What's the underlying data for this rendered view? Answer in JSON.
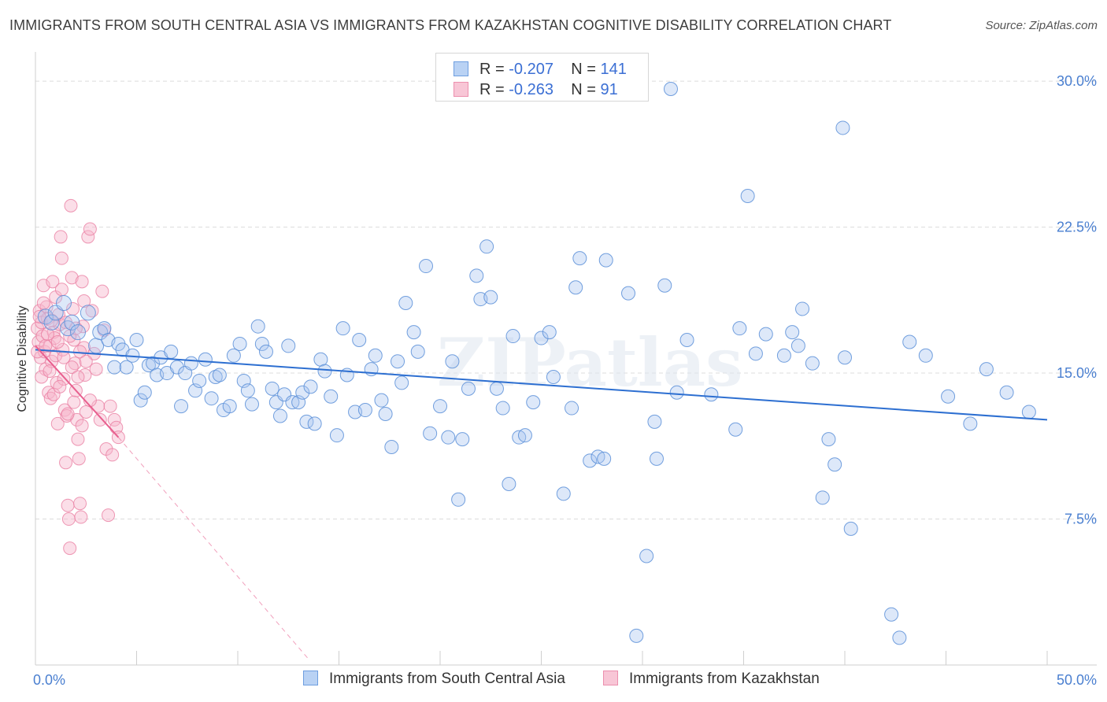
{
  "title": "IMMIGRANTS FROM SOUTH CENTRAL ASIA VS IMMIGRANTS FROM KAZAKHSTAN COGNITIVE DISABILITY CORRELATION CHART",
  "source": "Source: ZipAtlas.com",
  "watermark": "ZIPatlas",
  "legend_stats": [
    {
      "r_label": "R =",
      "r_value": "-0.207",
      "n_label": "N =",
      "n_value": "141"
    },
    {
      "r_label": "R =",
      "r_value": "-0.263",
      "n_label": "N =",
      "n_value": "91"
    }
  ],
  "colors": {
    "blue_fill": "#a9c6f0",
    "blue_stroke": "#5b8fd8",
    "blue_line": "#2d6fd1",
    "pink_fill": "#f6b6cb",
    "pink_stroke": "#ea7fa3",
    "pink_line": "#e8608f",
    "tick_text": "#4a7fd0",
    "grid": "#dcdcdc"
  },
  "chart_data": {
    "type": "scatter",
    "title": "IMMIGRANTS FROM SOUTH CENTRAL ASIA VS IMMIGRANTS FROM KAZAKHSTAN COGNITIVE DISABILITY CORRELATION CHART",
    "xlabel": "",
    "ylabel": "Cognitive Disability",
    "xlim": [
      0,
      50
    ],
    "ylim": [
      0,
      31.5
    ],
    "x_tick_labels": [
      "0.0%",
      "50.0%"
    ],
    "y_ticks": [
      7.5,
      15.0,
      22.5,
      30.0
    ],
    "y_tick_labels": [
      "7.5%",
      "15.0%",
      "22.5%",
      "30.0%"
    ],
    "grid": "horizontal dashed",
    "legend_position": "bottom",
    "series": [
      {
        "name": "Immigrants from South Central Asia",
        "trend": {
          "x": [
            0,
            50
          ],
          "y": [
            16.2,
            12.6
          ]
        },
        "points": [
          [
            0.5,
            17.9
          ],
          [
            0.8,
            17.6
          ],
          [
            1.0,
            18.1
          ],
          [
            1.4,
            18.6
          ],
          [
            1.6,
            17.3
          ],
          [
            1.8,
            17.6
          ],
          [
            2.1,
            17.1
          ],
          [
            2.6,
            18.1
          ],
          [
            3.0,
            16.4
          ],
          [
            3.2,
            17.1
          ],
          [
            3.4,
            17.3
          ],
          [
            3.6,
            16.7
          ],
          [
            3.9,
            15.3
          ],
          [
            4.1,
            16.5
          ],
          [
            4.3,
            16.2
          ],
          [
            4.5,
            15.3
          ],
          [
            4.8,
            15.9
          ],
          [
            5.0,
            16.7
          ],
          [
            5.2,
            13.6
          ],
          [
            5.4,
            14.0
          ],
          [
            5.6,
            15.4
          ],
          [
            5.8,
            15.5
          ],
          [
            6.0,
            14.9
          ],
          [
            6.2,
            15.8
          ],
          [
            6.5,
            15.0
          ],
          [
            6.7,
            16.1
          ],
          [
            7.0,
            15.3
          ],
          [
            7.2,
            13.3
          ],
          [
            7.4,
            15.0
          ],
          [
            7.7,
            15.5
          ],
          [
            7.9,
            14.1
          ],
          [
            8.1,
            14.6
          ],
          [
            8.4,
            15.7
          ],
          [
            8.7,
            13.7
          ],
          [
            8.9,
            14.8
          ],
          [
            9.1,
            14.9
          ],
          [
            9.3,
            13.1
          ],
          [
            9.6,
            13.3
          ],
          [
            9.8,
            15.9
          ],
          [
            10.1,
            16.5
          ],
          [
            10.3,
            14.6
          ],
          [
            10.5,
            14.1
          ],
          [
            10.7,
            13.4
          ],
          [
            11.0,
            17.4
          ],
          [
            11.2,
            16.5
          ],
          [
            11.4,
            16.1
          ],
          [
            11.7,
            14.2
          ],
          [
            11.9,
            13.5
          ],
          [
            12.1,
            12.8
          ],
          [
            12.3,
            13.9
          ],
          [
            12.5,
            16.4
          ],
          [
            12.7,
            13.5
          ],
          [
            13.0,
            13.5
          ],
          [
            13.2,
            14.0
          ],
          [
            13.4,
            12.5
          ],
          [
            13.6,
            14.3
          ],
          [
            13.8,
            12.4
          ],
          [
            14.1,
            15.7
          ],
          [
            14.3,
            15.1
          ],
          [
            14.6,
            13.8
          ],
          [
            14.9,
            11.8
          ],
          [
            15.2,
            17.3
          ],
          [
            15.4,
            14.9
          ],
          [
            15.8,
            13.0
          ],
          [
            16.0,
            16.7
          ],
          [
            16.3,
            13.1
          ],
          [
            16.6,
            15.2
          ],
          [
            16.8,
            15.9
          ],
          [
            17.1,
            13.6
          ],
          [
            17.3,
            12.9
          ],
          [
            17.6,
            11.2
          ],
          [
            17.9,
            15.6
          ],
          [
            18.1,
            14.5
          ],
          [
            18.3,
            18.6
          ],
          [
            18.7,
            17.1
          ],
          [
            18.9,
            16.1
          ],
          [
            19.3,
            20.5
          ],
          [
            19.5,
            11.9
          ],
          [
            20.0,
            13.3
          ],
          [
            20.4,
            11.7
          ],
          [
            20.6,
            15.6
          ],
          [
            20.9,
            8.5
          ],
          [
            21.1,
            11.6
          ],
          [
            21.4,
            14.2
          ],
          [
            21.8,
            20.0
          ],
          [
            22.0,
            18.8
          ],
          [
            22.3,
            21.5
          ],
          [
            22.5,
            18.9
          ],
          [
            22.8,
            14.2
          ],
          [
            23.1,
            13.2
          ],
          [
            23.4,
            9.3
          ],
          [
            23.6,
            16.9
          ],
          [
            23.9,
            11.7
          ],
          [
            24.2,
            11.8
          ],
          [
            24.6,
            13.5
          ],
          [
            25.0,
            16.8
          ],
          [
            25.4,
            17.1
          ],
          [
            25.6,
            14.8
          ],
          [
            26.1,
            8.8
          ],
          [
            26.5,
            13.2
          ],
          [
            26.7,
            19.4
          ],
          [
            26.9,
            20.9
          ],
          [
            27.4,
            10.5
          ],
          [
            27.8,
            10.7
          ],
          [
            28.1,
            10.6
          ],
          [
            28.2,
            20.8
          ],
          [
            29.3,
            19.1
          ],
          [
            29.7,
            1.5
          ],
          [
            30.2,
            5.6
          ],
          [
            30.6,
            12.5
          ],
          [
            30.7,
            10.6
          ],
          [
            31.1,
            19.5
          ],
          [
            31.4,
            29.6
          ],
          [
            31.7,
            14.0
          ],
          [
            32.2,
            16.7
          ],
          [
            33.4,
            13.9
          ],
          [
            34.6,
            12.1
          ],
          [
            34.8,
            17.3
          ],
          [
            35.2,
            24.1
          ],
          [
            35.6,
            16.0
          ],
          [
            36.1,
            17.0
          ],
          [
            37.0,
            15.9
          ],
          [
            37.4,
            17.1
          ],
          [
            37.7,
            16.4
          ],
          [
            37.9,
            18.3
          ],
          [
            38.4,
            15.5
          ],
          [
            38.9,
            8.6
          ],
          [
            39.2,
            11.6
          ],
          [
            39.5,
            10.3
          ],
          [
            39.9,
            27.6
          ],
          [
            40.0,
            15.8
          ],
          [
            40.3,
            7.0
          ],
          [
            42.3,
            2.6
          ],
          [
            42.7,
            1.4
          ],
          [
            43.2,
            16.6
          ],
          [
            44.0,
            15.9
          ],
          [
            45.1,
            13.8
          ],
          [
            46.2,
            12.4
          ],
          [
            47.0,
            15.2
          ],
          [
            48.0,
            14.0
          ],
          [
            49.1,
            13.0
          ]
        ]
      },
      {
        "name": "Immigrants from Kazakhstan",
        "trend": {
          "x": [
            0,
            4.1
          ],
          "y": [
            16.4,
            11.7
          ]
        },
        "trend_extension": {
          "x": [
            4.1,
            13.5
          ],
          "y": [
            11.7,
            0.3
          ]
        },
        "points": [
          [
            0.1,
            17.3
          ],
          [
            0.15,
            16.6
          ],
          [
            0.2,
            18.2
          ],
          [
            0.25,
            15.8
          ],
          [
            0.3,
            17.6
          ],
          [
            0.35,
            16.9
          ],
          [
            0.4,
            19.5
          ],
          [
            0.45,
            16.1
          ],
          [
            0.5,
            15.2
          ],
          [
            0.55,
            18.4
          ],
          [
            0.6,
            17.8
          ],
          [
            0.65,
            14.0
          ],
          [
            0.7,
            16.4
          ],
          [
            0.75,
            13.7
          ],
          [
            0.8,
            15.6
          ],
          [
            0.85,
            19.7
          ],
          [
            0.9,
            17.1
          ],
          [
            0.95,
            16.8
          ],
          [
            1.0,
            15.9
          ],
          [
            1.05,
            14.5
          ],
          [
            1.1,
            12.4
          ],
          [
            1.15,
            18.0
          ],
          [
            1.2,
            17.5
          ],
          [
            1.25,
            22.0
          ],
          [
            1.3,
            20.9
          ],
          [
            1.35,
            16.2
          ],
          [
            1.4,
            14.7
          ],
          [
            1.45,
            13.1
          ],
          [
            1.5,
            10.4
          ],
          [
            1.55,
            12.8
          ],
          [
            1.6,
            8.2
          ],
          [
            1.65,
            7.5
          ],
          [
            1.7,
            6.0
          ],
          [
            1.75,
            23.6
          ],
          [
            1.8,
            19.9
          ],
          [
            1.85,
            18.3
          ],
          [
            1.9,
            16.7
          ],
          [
            1.95,
            15.5
          ],
          [
            2.0,
            14.1
          ],
          [
            2.05,
            12.6
          ],
          [
            2.1,
            11.6
          ],
          [
            2.15,
            10.6
          ],
          [
            2.2,
            8.3
          ],
          [
            2.25,
            7.6
          ],
          [
            2.3,
            19.7
          ],
          [
            2.35,
            17.4
          ],
          [
            2.4,
            16.3
          ],
          [
            2.45,
            14.9
          ],
          [
            2.5,
            13.0
          ],
          [
            2.6,
            22.0
          ],
          [
            2.7,
            22.4
          ],
          [
            2.8,
            18.2
          ],
          [
            2.9,
            16.0
          ],
          [
            3.0,
            15.2
          ],
          [
            3.1,
            13.3
          ],
          [
            3.2,
            12.6
          ],
          [
            3.3,
            19.2
          ],
          [
            3.4,
            17.2
          ],
          [
            3.5,
            11.1
          ],
          [
            3.6,
            7.7
          ],
          [
            3.7,
            13.3
          ],
          [
            3.8,
            10.8
          ],
          [
            3.9,
            12.6
          ],
          [
            4.0,
            12.2
          ],
          [
            4.1,
            11.7
          ],
          [
            0.1,
            16.1
          ],
          [
            0.2,
            17.9
          ],
          [
            0.3,
            14.8
          ],
          [
            0.4,
            18.6
          ],
          [
            0.5,
            16.4
          ],
          [
            0.6,
            17.0
          ],
          [
            0.7,
            15.1
          ],
          [
            0.8,
            17.7
          ],
          [
            0.9,
            13.9
          ],
          [
            1.0,
            18.9
          ],
          [
            1.1,
            16.6
          ],
          [
            1.2,
            14.3
          ],
          [
            1.3,
            19.3
          ],
          [
            1.4,
            15.8
          ],
          [
            1.5,
            17.6
          ],
          [
            1.6,
            12.9
          ],
          [
            1.7,
            16.9
          ],
          [
            1.8,
            15.3
          ],
          [
            1.9,
            13.5
          ],
          [
            2.0,
            17.3
          ],
          [
            2.1,
            14.8
          ],
          [
            2.2,
            16.1
          ],
          [
            2.3,
            12.3
          ],
          [
            2.4,
            18.7
          ],
          [
            2.5,
            15.6
          ],
          [
            2.7,
            13.6
          ]
        ]
      }
    ]
  }
}
